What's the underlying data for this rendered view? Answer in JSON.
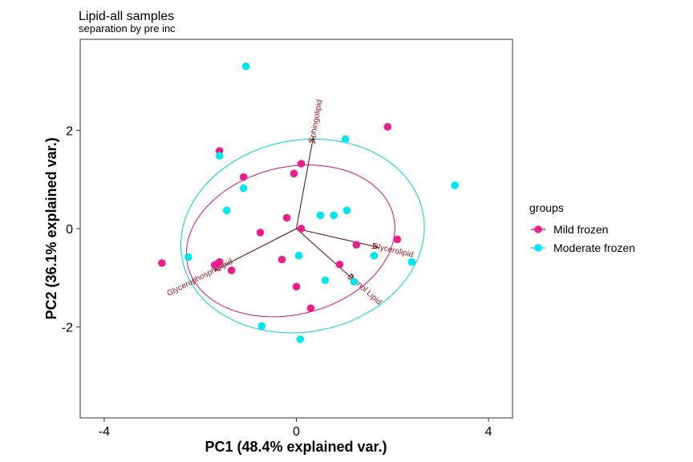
{
  "chart_data": {
    "type": "scatter",
    "title": "Lipid-all samples",
    "subtitle": "separation by pre inc",
    "xlabel": "PC1 (48.4% explained var.)",
    "ylabel": "PC2 (36.1% explained var.)",
    "xlim": [
      -4.5,
      4.5
    ],
    "ylim": [
      -3.85,
      3.85
    ],
    "xticks": [
      -4,
      0,
      4
    ],
    "yticks": [
      -2,
      0,
      2
    ],
    "grid": false,
    "legend": {
      "title": "groups",
      "position": "right"
    },
    "series": [
      {
        "name": "Mild frozen",
        "color": "#EB1E8C",
        "points": [
          [
            -2.8,
            -0.7
          ],
          [
            -1.6,
            1.58
          ],
          [
            -1.1,
            1.05
          ],
          [
            -1.35,
            -0.85
          ],
          [
            -1.6,
            -0.68
          ],
          [
            -1.7,
            -0.74
          ],
          [
            -1.65,
            -0.72
          ],
          [
            -0.75,
            -0.08
          ],
          [
            -0.2,
            0.22
          ],
          [
            -0.3,
            -0.63
          ],
          [
            -0.05,
            1.12
          ],
          [
            0.1,
            1.32
          ],
          [
            0.1,
            0.0
          ],
          [
            0.0,
            -1.18
          ],
          [
            0.3,
            -1.62
          ],
          [
            0.9,
            -0.73
          ],
          [
            1.25,
            -0.33
          ],
          [
            1.9,
            2.07
          ],
          [
            2.1,
            -0.22
          ]
        ]
      },
      {
        "name": "Moderate frozen",
        "color": "#00E5EE",
        "points": [
          [
            -1.05,
            3.3
          ],
          [
            -1.6,
            1.48
          ],
          [
            -1.1,
            0.82
          ],
          [
            -1.45,
            0.37
          ],
          [
            -2.25,
            -0.58
          ],
          [
            0.5,
            0.27
          ],
          [
            0.78,
            0.27
          ],
          [
            1.05,
            0.37
          ],
          [
            1.02,
            1.82
          ],
          [
            0.05,
            -0.55
          ],
          [
            0.6,
            -1.05
          ],
          [
            1.2,
            -1.08
          ],
          [
            1.62,
            -0.55
          ],
          [
            2.4,
            -0.68
          ],
          [
            -0.72,
            -1.98
          ],
          [
            0.08,
            -2.25
          ],
          [
            3.3,
            0.88
          ]
        ]
      }
    ],
    "loadings": [
      {
        "name": "Sphingolipid",
        "x": 0.35,
        "y": 1.85
      },
      {
        "name": "Glycerolipid",
        "x": 1.7,
        "y": -0.38
      },
      {
        "name": "Prenol Lipid",
        "x": 1.2,
        "y": -1.05
      },
      {
        "name": "Glycerophospholipid",
        "x": -1.7,
        "y": -0.85
      }
    ],
    "ellipses": [
      {
        "group": "Mild frozen",
        "color": "#C71585",
        "cx": -0.12,
        "cy": -0.25,
        "rx": 2.2,
        "ry": 1.5,
        "angle_deg": 13
      },
      {
        "group": "Moderate frozen",
        "color": "#00CED1",
        "cx": 0.13,
        "cy": -0.15,
        "rx": 2.55,
        "ry": 1.95,
        "angle_deg": 10
      }
    ]
  }
}
